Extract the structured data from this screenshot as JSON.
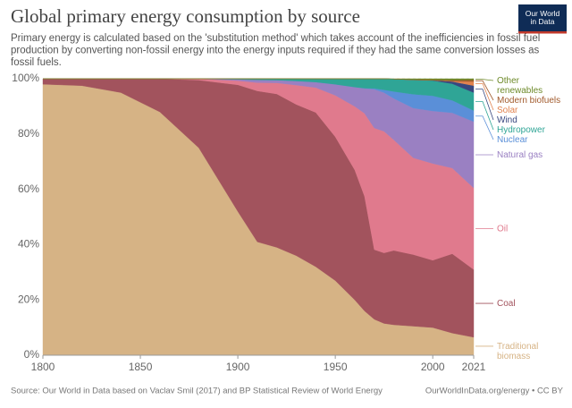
{
  "chart_data": {
    "type": "stacked_area",
    "title": "Global primary energy consumption by source",
    "subtitle": "Primary energy is calculated based on the 'substitution method' which takes account of the inefficiencies in fossil fuel production by converting non-fossil energy into the energy inputs required if they had the same conversion losses as fossil fuels.",
    "logo": "Our World in Data",
    "source": "Source: Our World in Data based on Vaclav Smil (2017) and BP Statistical Review of World Energy",
    "url": "OurWorldInData.org/energy • CC BY",
    "x": [
      1800,
      1820,
      1840,
      1860,
      1880,
      1900,
      1910,
      1920,
      1930,
      1940,
      1950,
      1960,
      1965,
      1970,
      1975,
      1980,
      1990,
      2000,
      2010,
      2021
    ],
    "xlim": [
      1800,
      2021
    ],
    "xticks": [
      1800,
      1850,
      1900,
      1950,
      2000,
      2021
    ],
    "ylim": [
      0,
      100
    ],
    "yticks": [
      {
        "value": 0,
        "label": "0%"
      },
      {
        "value": 20,
        "label": "20%"
      },
      {
        "value": 40,
        "label": "40%"
      },
      {
        "value": 60,
        "label": "60%"
      },
      {
        "value": 80,
        "label": "80%"
      },
      {
        "value": 100,
        "label": "100%"
      }
    ],
    "grid": true,
    "series": [
      {
        "name": "Traditional biomass",
        "color": "#d6b385",
        "values": [
          98,
          97.5,
          95,
          88,
          75,
          52,
          41,
          39,
          36,
          32,
          27,
          20,
          16,
          13,
          11.5,
          11,
          10.5,
          10,
          8,
          6.5
        ]
      },
      {
        "name": "Coal",
        "color": "#a2535d",
        "values": [
          2,
          2.5,
          5,
          12,
          24.5,
          45.8,
          54.6,
          55.5,
          54.7,
          55.8,
          52,
          47,
          41.5,
          25.2,
          25.5,
          26.9,
          25.9,
          24.35,
          28.7,
          24.5
        ]
      },
      {
        "name": "Oil",
        "color": "#e07a8d",
        "values": [
          0,
          0,
          0,
          0,
          0.5,
          1.5,
          3,
          4,
          7,
          9,
          15,
          23,
          30,
          44,
          44,
          40,
          35,
          35,
          31,
          29.5
        ]
      },
      {
        "name": "Natural gas",
        "color": "#9a80c2",
        "values": [
          0,
          0,
          0,
          0,
          0,
          0.5,
          1,
          1,
          1.5,
          2,
          4,
          7,
          9,
          14,
          14,
          15,
          18,
          19,
          20,
          24
        ]
      },
      {
        "name": "Nuclear",
        "color": "#5a8fd8",
        "values": [
          0,
          0,
          0,
          0,
          0,
          0,
          0,
          0,
          0,
          0,
          0,
          0,
          0.1,
          0.3,
          1,
          2.5,
          5,
          5.5,
          4.5,
          4
        ]
      },
      {
        "name": "Hydropower",
        "color": "#2fa596",
        "values": [
          0,
          0,
          0,
          0,
          0,
          0.2,
          0.4,
          0.5,
          0.8,
          1.2,
          2,
          3,
          3.4,
          3.5,
          4,
          4.5,
          5.2,
          5.5,
          6,
          6.5
        ]
      },
      {
        "name": "Wind",
        "color": "#38477f",
        "values": [
          0,
          0,
          0,
          0,
          0,
          0,
          0,
          0,
          0,
          0,
          0,
          0,
          0,
          0,
          0,
          0,
          0,
          0.1,
          0.8,
          2.5
        ]
      },
      {
        "name": "Solar",
        "color": "#e2834f",
        "values": [
          0,
          0,
          0,
          0,
          0,
          0,
          0,
          0,
          0,
          0,
          0,
          0,
          0,
          0,
          0,
          0,
          0,
          0,
          0.1,
          1.5
        ]
      },
      {
        "name": "Modern biofuels",
        "color": "#a15a2c",
        "values": [
          0,
          0,
          0,
          0,
          0,
          0,
          0,
          0,
          0,
          0,
          0,
          0,
          0,
          0,
          0,
          0,
          0.1,
          0.15,
          0.4,
          0.6
        ]
      },
      {
        "name": "Other renewables",
        "color": "#6e8a2a",
        "values": [
          0,
          0,
          0,
          0,
          0,
          0,
          0,
          0,
          0,
          0,
          0,
          0,
          0,
          0,
          0,
          0.1,
          0.3,
          0.4,
          0.5,
          0.4
        ]
      }
    ]
  }
}
